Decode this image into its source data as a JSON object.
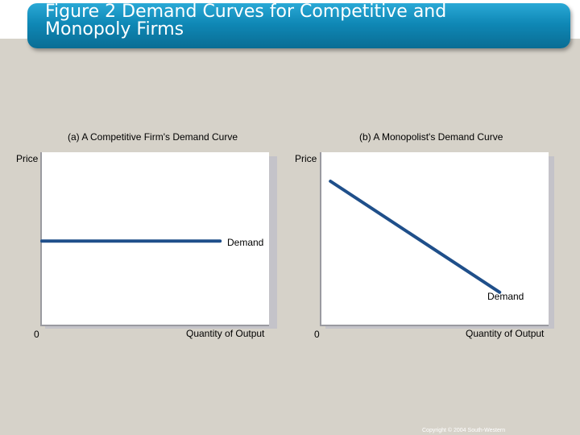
{
  "header": {
    "title": "Figure 2 Demand Curves for Competitive and\nMonopoly Firms"
  },
  "footer": {
    "copyright": "Copyright © 2004  South-Western"
  },
  "colors": {
    "banner": "#1a93c2",
    "curve": "#1f4f8a",
    "background": "#d6d2c9"
  },
  "chart_data": [
    {
      "type": "line",
      "title": "(a) A Competitive Firm's Demand Curve",
      "xlabel": "Quantity of Output",
      "ylabel": "Price",
      "origin_label": "0",
      "series": [
        {
          "name": "Demand",
          "x": [
            0,
            79
          ],
          "y": [
            48,
            48
          ]
        }
      ],
      "xlim": [
        0,
        100
      ],
      "ylim": [
        0,
        100
      ],
      "grid": false
    },
    {
      "type": "line",
      "title": "(b) A Monopolist's Demand Curve",
      "xlabel": "Quantity of Output",
      "ylabel": "Price",
      "origin_label": "0",
      "series": [
        {
          "name": "Demand",
          "x": [
            4,
            79
          ],
          "y": [
            83,
            18
          ]
        }
      ],
      "xlim": [
        0,
        100
      ],
      "ylim": [
        0,
        100
      ],
      "grid": false
    }
  ]
}
